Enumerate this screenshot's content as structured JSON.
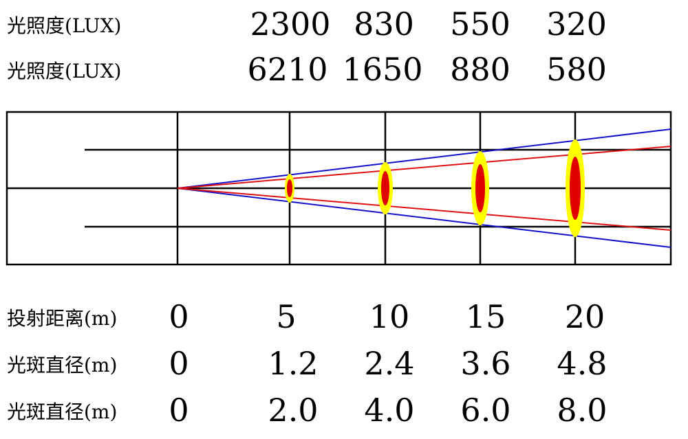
{
  "top_rows": [
    {
      "label": "光照度(LUX)",
      "values": [
        "2300",
        "830",
        "550",
        "320"
      ]
    },
    {
      "label": "光照度(LUX)",
      "values": [
        "6210",
        "1650",
        "880",
        "580"
      ]
    }
  ],
  "bottom_rows": [
    {
      "label": "投射距离(m)",
      "values": [
        "0",
        "5",
        "10",
        "15",
        "20"
      ]
    },
    {
      "label": "光斑直径(m)",
      "values": [
        "0",
        "1.2",
        "2.4",
        "3.6",
        "4.8"
      ]
    },
    {
      "label": "光斑直径(m)",
      "values": [
        "0",
        "2.0",
        "4.0",
        "6.0",
        "8.0"
      ]
    }
  ],
  "colors": {
    "grid": "#000000",
    "outer_beam": "#1010c8",
    "inner_beam": "#e01010",
    "outer_spot": "#ffff00",
    "inner_spot": "#e00000"
  }
}
